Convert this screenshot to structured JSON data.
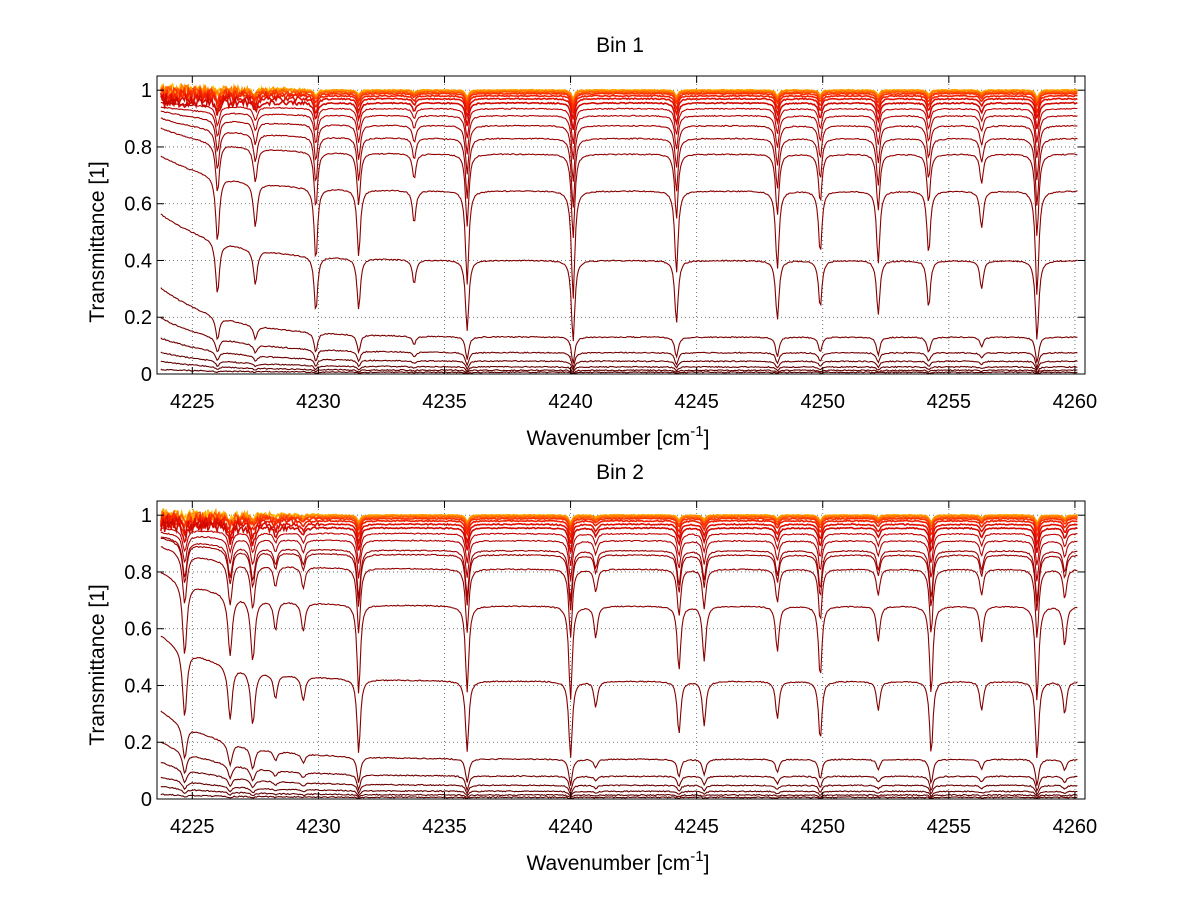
{
  "chart_data": [
    {
      "type": "line",
      "title": "Bin 1",
      "xlabel": "Wavenumber [cm",
      "xlabel_sup": "-1",
      "xlabel_end": "]",
      "ylabel": "Transmittance [1]",
      "xlim": [
        4223.6,
        4260.4
      ],
      "ylim": [
        0,
        1.05
      ],
      "xticks": [
        4225,
        4230,
        4235,
        4240,
        4245,
        4250,
        4255,
        4260
      ],
      "yticks": [
        0,
        0.2,
        0.4,
        0.6,
        0.8,
        1
      ],
      "ytick_labels": [
        "0",
        "0.2",
        "0.4",
        "0.6",
        "0.8",
        "1"
      ],
      "grid": true,
      "absorption_lines": [
        {
          "x": 4226.0,
          "depth": 0.4,
          "w": 0.09
        },
        {
          "x": 4227.5,
          "depth": 0.28,
          "w": 0.09
        },
        {
          "x": 4229.9,
          "depth": 0.48,
          "w": 0.08
        },
        {
          "x": 4231.6,
          "depth": 0.44,
          "w": 0.08
        },
        {
          "x": 4233.8,
          "depth": 0.22,
          "w": 0.08
        },
        {
          "x": 4235.9,
          "depth": 0.62,
          "w": 0.08
        },
        {
          "x": 4240.1,
          "depth": 0.72,
          "w": 0.08
        },
        {
          "x": 4244.2,
          "depth": 0.55,
          "w": 0.08
        },
        {
          "x": 4248.2,
          "depth": 0.52,
          "w": 0.08
        },
        {
          "x": 4249.9,
          "depth": 0.42,
          "w": 0.08
        },
        {
          "x": 4252.2,
          "depth": 0.48,
          "w": 0.08
        },
        {
          "x": 4254.2,
          "depth": 0.42,
          "w": 0.08
        },
        {
          "x": 4256.3,
          "depth": 0.25,
          "w": 0.08
        },
        {
          "x": 4258.5,
          "depth": 0.7,
          "w": 0.08
        }
      ],
      "series_baselines": [
        {
          "base": 1.0,
          "slope": 0.0,
          "color": "#ffc000"
        },
        {
          "base": 1.0,
          "slope": 0.0,
          "color": "#ffa000"
        },
        {
          "base": 0.997,
          "slope": 0.0,
          "color": "#ff8000"
        },
        {
          "base": 0.993,
          "slope": 0.0,
          "color": "#ff5a00"
        },
        {
          "base": 0.988,
          "slope": 0.0,
          "color": "#ff3000"
        },
        {
          "base": 0.98,
          "slope": 0.0,
          "color": "#f02000"
        },
        {
          "base": 0.97,
          "slope": 0.0,
          "color": "#e01000"
        },
        {
          "base": 0.955,
          "slope": 0.01,
          "color": "#d00800"
        },
        {
          "base": 0.935,
          "slope": 0.02,
          "color": "#c00000"
        },
        {
          "base": 0.91,
          "slope": 0.03,
          "color": "#b00000"
        },
        {
          "base": 0.875,
          "slope": 0.05,
          "color": "#a00000"
        },
        {
          "base": 0.83,
          "slope": 0.07,
          "color": "#9a0000"
        },
        {
          "base": 0.775,
          "slope": 0.09,
          "color": "#920000"
        },
        {
          "base": 0.645,
          "slope": 0.12,
          "color": "#8a0000"
        },
        {
          "base": 0.4,
          "slope": 0.16,
          "color": "#820000"
        },
        {
          "base": 0.13,
          "slope": 0.17,
          "color": "#7a0000"
        },
        {
          "base": 0.075,
          "slope": 0.12,
          "color": "#720000"
        },
        {
          "base": 0.045,
          "slope": 0.08,
          "color": "#6a0000"
        },
        {
          "base": 0.025,
          "slope": 0.05,
          "color": "#640000"
        },
        {
          "base": 0.013,
          "slope": 0.03,
          "color": "#600000"
        },
        {
          "base": 0.006,
          "slope": 0.01,
          "color": "#5a0000"
        }
      ]
    },
    {
      "type": "line",
      "title": "Bin 2",
      "xlabel": "Wavenumber [cm",
      "xlabel_sup": "-1",
      "xlabel_end": "]",
      "ylabel": "Transmittance [1]",
      "xlim": [
        4223.6,
        4260.4
      ],
      "ylim": [
        0,
        1.05
      ],
      "xticks": [
        4225,
        4230,
        4235,
        4240,
        4245,
        4250,
        4255,
        4260
      ],
      "yticks": [
        0,
        0.2,
        0.4,
        0.6,
        0.8,
        1
      ],
      "ytick_labels": [
        "0",
        "0.2",
        "0.4",
        "0.6",
        "0.8",
        "1"
      ],
      "grid": true,
      "absorption_lines": [
        {
          "x": 4224.7,
          "depth": 0.45,
          "w": 0.1
        },
        {
          "x": 4226.5,
          "depth": 0.4,
          "w": 0.1
        },
        {
          "x": 4227.4,
          "depth": 0.42,
          "w": 0.1
        },
        {
          "x": 4228.3,
          "depth": 0.2,
          "w": 0.09
        },
        {
          "x": 4229.4,
          "depth": 0.2,
          "w": 0.09
        },
        {
          "x": 4231.6,
          "depth": 0.62,
          "w": 0.08
        },
        {
          "x": 4235.9,
          "depth": 0.6,
          "w": 0.08
        },
        {
          "x": 4240.0,
          "depth": 0.65,
          "w": 0.08
        },
        {
          "x": 4241.0,
          "depth": 0.22,
          "w": 0.08
        },
        {
          "x": 4244.3,
          "depth": 0.45,
          "w": 0.08
        },
        {
          "x": 4245.3,
          "depth": 0.38,
          "w": 0.08
        },
        {
          "x": 4248.2,
          "depth": 0.32,
          "w": 0.08
        },
        {
          "x": 4249.9,
          "depth": 0.5,
          "w": 0.08
        },
        {
          "x": 4252.2,
          "depth": 0.25,
          "w": 0.08
        },
        {
          "x": 4254.3,
          "depth": 0.62,
          "w": 0.08
        },
        {
          "x": 4256.3,
          "depth": 0.25,
          "w": 0.08
        },
        {
          "x": 4258.5,
          "depth": 0.66,
          "w": 0.08
        },
        {
          "x": 4259.6,
          "depth": 0.28,
          "w": 0.08
        }
      ],
      "series_baselines": [
        {
          "base": 1.0,
          "slope": 0.0,
          "color": "#ffc000"
        },
        {
          "base": 1.0,
          "slope": 0.0,
          "color": "#ffa000"
        },
        {
          "base": 0.997,
          "slope": 0.0,
          "color": "#ff8000"
        },
        {
          "base": 0.993,
          "slope": 0.0,
          "color": "#ff5a00"
        },
        {
          "base": 0.988,
          "slope": 0.0,
          "color": "#ff3000"
        },
        {
          "base": 0.98,
          "slope": 0.0,
          "color": "#f02000"
        },
        {
          "base": 0.968,
          "slope": 0.01,
          "color": "#e01000"
        },
        {
          "base": 0.955,
          "slope": 0.01,
          "color": "#d00800"
        },
        {
          "base": 0.935,
          "slope": 0.02,
          "color": "#c00000"
        },
        {
          "base": 0.91,
          "slope": 0.03,
          "color": "#b00000"
        },
        {
          "base": 0.875,
          "slope": 0.05,
          "color": "#a00000"
        },
        {
          "base": 0.86,
          "slope": 0.06,
          "color": "#9a0000"
        },
        {
          "base": 0.81,
          "slope": 0.08,
          "color": "#920000"
        },
        {
          "base": 0.68,
          "slope": 0.12,
          "color": "#8a0000"
        },
        {
          "base": 0.415,
          "slope": 0.16,
          "color": "#820000"
        },
        {
          "base": 0.14,
          "slope": 0.17,
          "color": "#7a0000"
        },
        {
          "base": 0.08,
          "slope": 0.12,
          "color": "#720000"
        },
        {
          "base": 0.048,
          "slope": 0.08,
          "color": "#6a0000"
        },
        {
          "base": 0.027,
          "slope": 0.05,
          "color": "#640000"
        },
        {
          "base": 0.014,
          "slope": 0.03,
          "color": "#600000"
        },
        {
          "base": 0.006,
          "slope": 0.01,
          "color": "#5a0000"
        }
      ]
    }
  ]
}
